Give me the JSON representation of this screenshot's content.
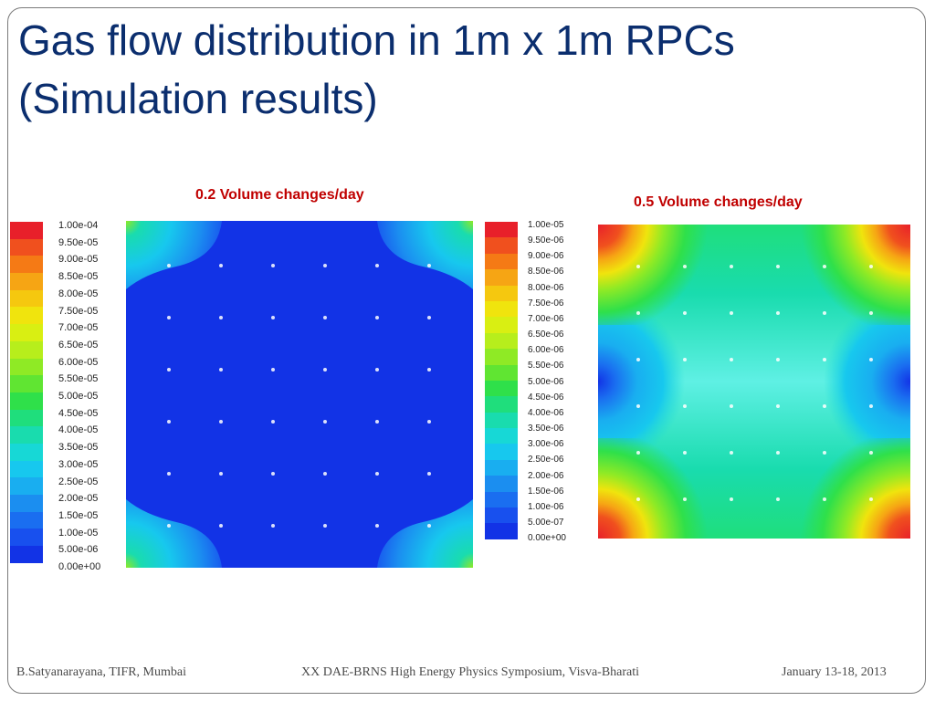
{
  "slide": {
    "title_line1": "Gas flow distribution in 1m x 1m RPCs",
    "title_line2": "(Simulation results)"
  },
  "footer": {
    "left": "B.Satyanarayana, TIFR, Mumbai",
    "center": "XX DAE-BRNS High Energy Physics Symposium, Visva-Bharati",
    "right": "January 13-18, 2013"
  },
  "chart_data": [
    {
      "type": "heatmap",
      "title": "0.2 Volume changes/day",
      "colorbar_ticks": [
        "1.00e-04",
        "9.50e-05",
        "9.00e-05",
        "8.50e-05",
        "8.00e-05",
        "7.50e-05",
        "7.00e-05",
        "6.50e-05",
        "6.00e-05",
        "5.50e-05",
        "5.00e-05",
        "4.50e-05",
        "4.00e-05",
        "3.50e-05",
        "3.00e-05",
        "2.50e-05",
        "2.00e-05",
        "1.50e-05",
        "1.00e-05",
        "5.00e-06",
        "0.00e+00"
      ],
      "range": [
        0,
        0.0001
      ],
      "grid_points": {
        "rows": 6,
        "cols": 6
      }
    },
    {
      "type": "heatmap",
      "title": "0.5 Volume changes/day",
      "colorbar_ticks": [
        "1.00e-05",
        "9.50e-06",
        "9.00e-06",
        "8.50e-06",
        "8.00e-06",
        "7.50e-06",
        "7.00e-06",
        "6.50e-06",
        "6.00e-06",
        "5.50e-06",
        "5.00e-06",
        "4.50e-06",
        "4.00e-06",
        "3.50e-06",
        "3.00e-06",
        "2.50e-06",
        "2.00e-06",
        "1.50e-06",
        "1.00e-06",
        "5.00e-07",
        "0.00e+00"
      ],
      "range": [
        0,
        1e-05
      ],
      "grid_points": {
        "rows": 6,
        "cols": 6
      }
    }
  ],
  "colormap": [
    "#e8202a",
    "#f0501e",
    "#f57a15",
    "#f6a514",
    "#f5c80f",
    "#f0e40d",
    "#d9ef12",
    "#b7ee1c",
    "#8fea25",
    "#60e532",
    "#2fe04a",
    "#1fde7c",
    "#19dcae",
    "#17d8d6",
    "#17c8ee",
    "#19aef0",
    "#1b8ef0",
    "#1a6ef0",
    "#1850ee",
    "#1233e6"
  ]
}
